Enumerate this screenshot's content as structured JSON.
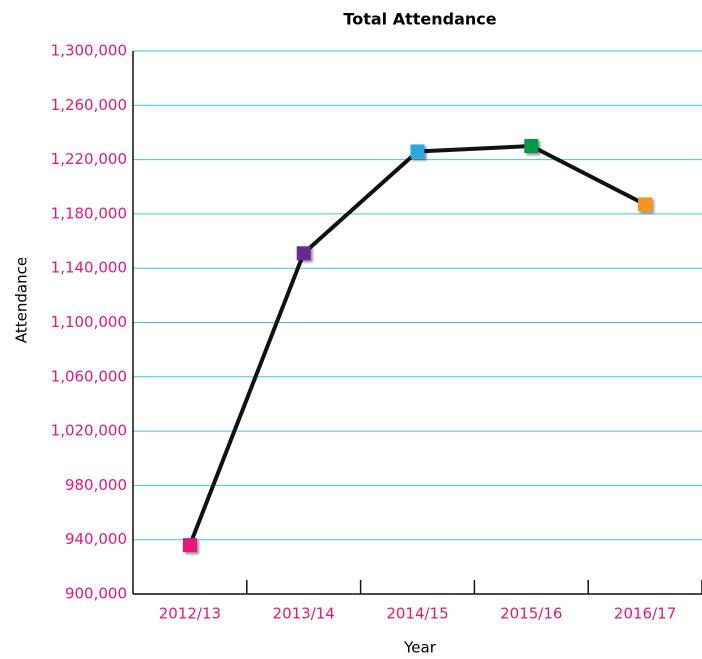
{
  "chart_data": {
    "type": "line",
    "title": "Total Attendance",
    "x_label": "Year",
    "y_label": "Attendance",
    "categories": [
      "2012/13",
      "2013/14",
      "2014/15",
      "2015/16",
      "2016/17"
    ],
    "values": [
      936000,
      1151000,
      1226000,
      1230000,
      1187000
    ],
    "color": "#111111",
    "marker_colors": [
      "#e6197a",
      "#6a2c91",
      "#29a8e0",
      "#00994c",
      "#f7941d"
    ],
    "ylim": [
      900000,
      1300000
    ],
    "yticks": [
      {
        "value": 900000,
        "label": "900,000"
      },
      {
        "value": 940000,
        "label": "940,000"
      },
      {
        "value": 980000,
        "label": "980,000"
      },
      {
        "value": 1020000,
        "label": "1,020,000"
      },
      {
        "value": 1060000,
        "label": "1,060,000"
      },
      {
        "value": 1100000,
        "label": "1,100,000"
      },
      {
        "value": 1140000,
        "label": "1,140,000"
      },
      {
        "value": 1180000,
        "label": "1,180,000"
      },
      {
        "value": 1220000,
        "label": "1,220,000"
      },
      {
        "value": 1260000,
        "label": "1,260,000"
      },
      {
        "value": 1300000,
        "label": "1,300,000"
      }
    ],
    "grid": true
  }
}
